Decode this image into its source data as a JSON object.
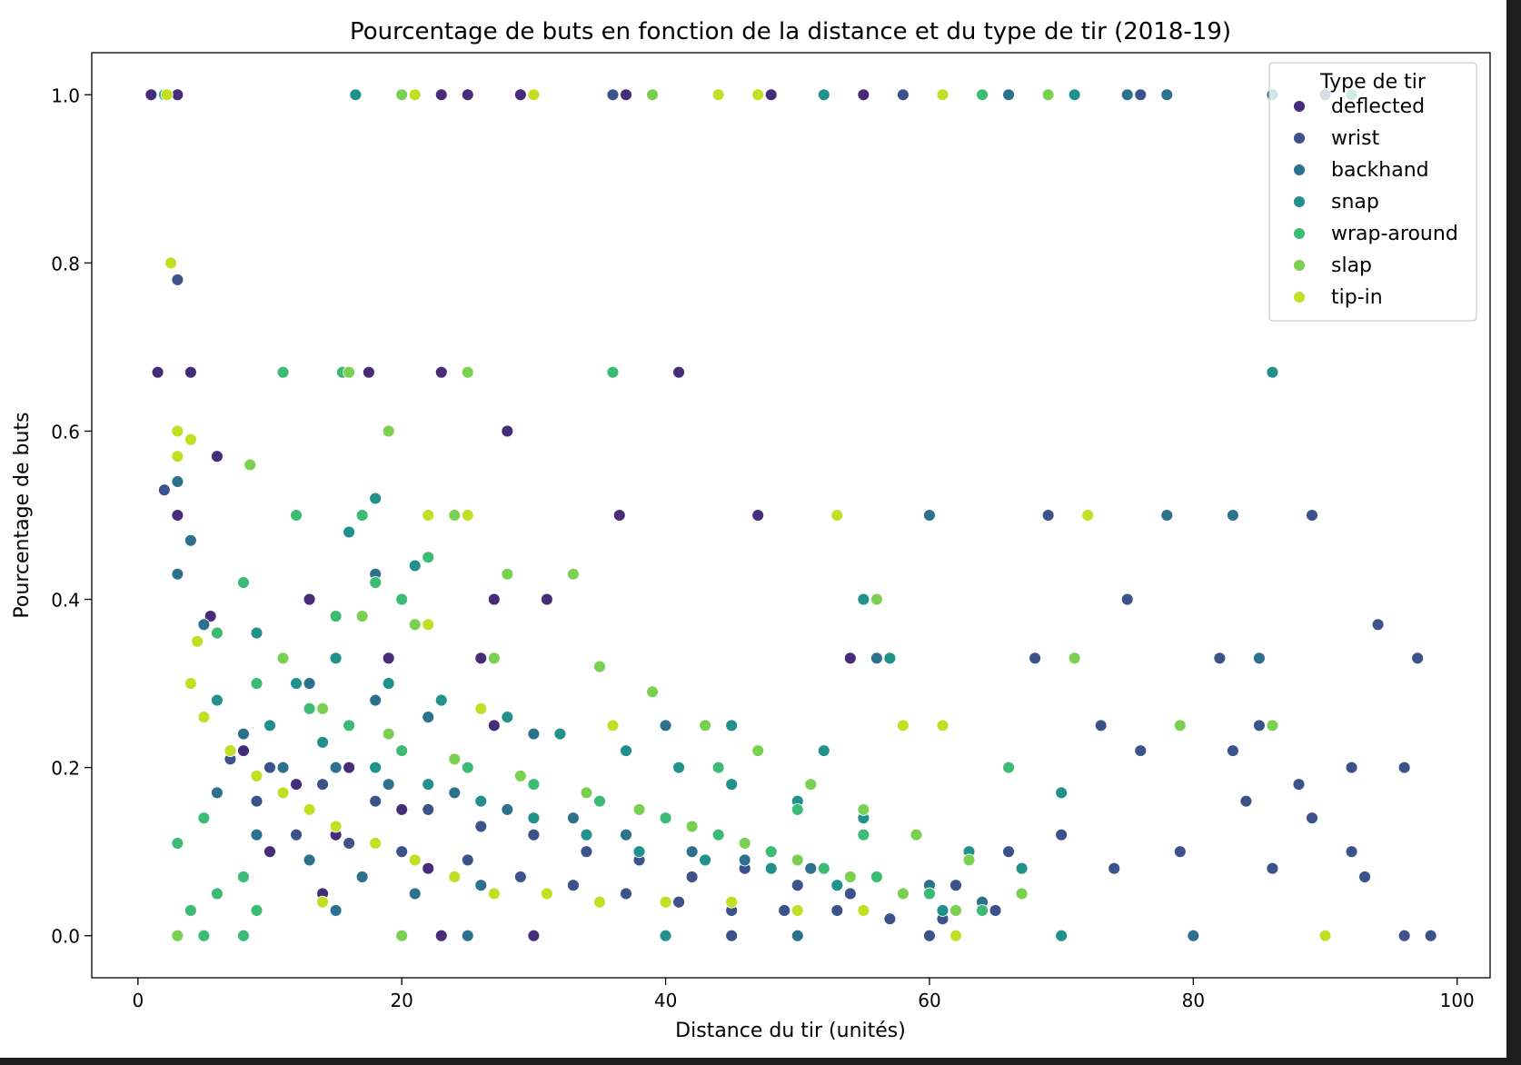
{
  "chart_data": {
    "type": "scatter",
    "title": "Pourcentage de buts en fonction de la distance et du type de tir (2018-19)",
    "xlabel": "Distance du tir (unités)",
    "ylabel": "Pourcentage de buts",
    "xlim": [
      -3.5,
      102.5
    ],
    "ylim": [
      -0.05,
      1.05
    ],
    "xticks": [
      0,
      20,
      40,
      60,
      80,
      100
    ],
    "xtick_labels": [
      "0",
      "20",
      "40",
      "60",
      "80",
      "100"
    ],
    "yticks": [
      0.0,
      0.2,
      0.4,
      0.6,
      0.8,
      1.0
    ],
    "ytick_labels": [
      "0.0",
      "0.2",
      "0.4",
      "0.6",
      "0.8",
      "1.0"
    ],
    "grid": false,
    "legend": {
      "title": "Type de tir",
      "placement": "top-right",
      "entries": [
        "deflected",
        "wrist",
        "backhand",
        "snap",
        "wrap-around",
        "slap",
        "tip-in"
      ]
    },
    "colors": {
      "deflected": "#472c7a",
      "wrist": "#3b528b",
      "backhand": "#2c728e",
      "snap": "#21918c",
      "wrap-around": "#3cbb75",
      "slap": "#7ad151",
      "tip-in": "#c2df23"
    },
    "series": [
      {
        "name": "deflected",
        "points": [
          [
            1,
            1.0
          ],
          [
            3,
            1.0
          ],
          [
            23,
            1.0
          ],
          [
            25,
            1.0
          ],
          [
            29,
            1.0
          ],
          [
            37,
            1.0
          ],
          [
            48,
            1.0
          ],
          [
            55,
            1.0
          ],
          [
            1.5,
            0.67
          ],
          [
            4,
            0.67
          ],
          [
            17.5,
            0.67
          ],
          [
            23,
            0.67
          ],
          [
            41,
            0.67
          ],
          [
            28,
            0.6
          ],
          [
            6,
            0.57
          ],
          [
            3,
            0.5
          ],
          [
            22,
            0.5
          ],
          [
            36.5,
            0.5
          ],
          [
            47,
            0.5
          ],
          [
            13,
            0.4
          ],
          [
            27,
            0.4
          ],
          [
            31,
            0.4
          ],
          [
            5.5,
            0.38
          ],
          [
            19,
            0.33
          ],
          [
            26,
            0.33
          ],
          [
            54,
            0.33
          ],
          [
            27,
            0.25
          ],
          [
            8,
            0.22
          ],
          [
            12,
            0.18
          ],
          [
            16,
            0.2
          ],
          [
            20,
            0.15
          ],
          [
            10,
            0.1
          ],
          [
            15,
            0.12
          ],
          [
            22,
            0.08
          ],
          [
            14,
            0.05
          ],
          [
            23,
            0.0
          ],
          [
            30,
            0.0
          ]
        ]
      },
      {
        "name": "wrist",
        "points": [
          [
            2,
            1.0
          ],
          [
            36,
            1.0
          ],
          [
            58,
            1.0
          ],
          [
            76,
            1.0
          ],
          [
            90,
            1.0
          ],
          [
            3,
            0.78
          ],
          [
            2,
            0.53
          ],
          [
            69,
            0.5
          ],
          [
            89,
            0.5
          ],
          [
            75,
            0.4
          ],
          [
            94,
            0.37
          ],
          [
            68,
            0.33
          ],
          [
            82,
            0.33
          ],
          [
            97,
            0.33
          ],
          [
            73,
            0.25
          ],
          [
            85,
            0.25
          ],
          [
            76,
            0.22
          ],
          [
            83,
            0.22
          ],
          [
            88,
            0.18
          ],
          [
            92,
            0.2
          ],
          [
            96,
            0.2
          ],
          [
            84,
            0.16
          ],
          [
            89,
            0.14
          ],
          [
            92,
            0.1
          ],
          [
            86,
            0.08
          ],
          [
            79,
            0.1
          ],
          [
            74,
            0.08
          ],
          [
            70,
            0.12
          ],
          [
            66,
            0.1
          ],
          [
            62,
            0.06
          ],
          [
            58,
            0.05
          ],
          [
            54,
            0.05
          ],
          [
            50,
            0.06
          ],
          [
            46,
            0.08
          ],
          [
            42,
            0.07
          ],
          [
            38,
            0.09
          ],
          [
            34,
            0.1
          ],
          [
            30,
            0.12
          ],
          [
            26,
            0.13
          ],
          [
            22,
            0.15
          ],
          [
            18,
            0.16
          ],
          [
            14,
            0.18
          ],
          [
            10,
            0.2
          ],
          [
            7,
            0.21
          ],
          [
            9,
            0.16
          ],
          [
            12,
            0.12
          ],
          [
            16,
            0.11
          ],
          [
            20,
            0.1
          ],
          [
            25,
            0.09
          ],
          [
            29,
            0.07
          ],
          [
            33,
            0.06
          ],
          [
            37,
            0.05
          ],
          [
            41,
            0.04
          ],
          [
            45,
            0.03
          ],
          [
            49,
            0.03
          ],
          [
            53,
            0.03
          ],
          [
            57,
            0.02
          ],
          [
            61,
            0.02
          ],
          [
            65,
            0.03
          ],
          [
            93,
            0.07
          ],
          [
            98,
            0.0
          ],
          [
            96,
            0.0
          ],
          [
            60,
            0.0
          ],
          [
            45,
            0.0
          ]
        ]
      },
      {
        "name": "backhand",
        "points": [
          [
            66,
            1.0
          ],
          [
            75,
            1.0
          ],
          [
            78,
            1.0
          ],
          [
            86,
            1.0
          ],
          [
            3,
            0.54
          ],
          [
            4,
            0.47
          ],
          [
            3,
            0.43
          ],
          [
            60,
            0.5
          ],
          [
            78,
            0.5
          ],
          [
            83,
            0.5
          ],
          [
            5,
            0.37
          ],
          [
            18,
            0.43
          ],
          [
            85,
            0.33
          ],
          [
            56,
            0.33
          ],
          [
            13,
            0.3
          ],
          [
            18,
            0.28
          ],
          [
            22,
            0.26
          ],
          [
            30,
            0.24
          ],
          [
            40,
            0.25
          ],
          [
            8,
            0.24
          ],
          [
            11,
            0.2
          ],
          [
            15,
            0.2
          ],
          [
            19,
            0.18
          ],
          [
            24,
            0.17
          ],
          [
            28,
            0.15
          ],
          [
            33,
            0.14
          ],
          [
            37,
            0.12
          ],
          [
            42,
            0.1
          ],
          [
            46,
            0.09
          ],
          [
            51,
            0.08
          ],
          [
            56,
            0.07
          ],
          [
            60,
            0.06
          ],
          [
            64,
            0.04
          ],
          [
            6,
            0.17
          ],
          [
            9,
            0.12
          ],
          [
            13,
            0.09
          ],
          [
            17,
            0.07
          ],
          [
            21,
            0.05
          ],
          [
            26,
            0.06
          ],
          [
            31,
            0.05
          ],
          [
            35,
            0.04
          ],
          [
            15,
            0.03
          ],
          [
            80,
            0.0
          ],
          [
            50,
            0.0
          ],
          [
            25,
            0.0
          ]
        ]
      },
      {
        "name": "snap",
        "points": [
          [
            16.5,
            1.0
          ],
          [
            52,
            1.0
          ],
          [
            71,
            1.0
          ],
          [
            92,
            1.0
          ],
          [
            86,
            0.67
          ],
          [
            18,
            0.52
          ],
          [
            16,
            0.48
          ],
          [
            21,
            0.44
          ],
          [
            55,
            0.4
          ],
          [
            9,
            0.36
          ],
          [
            12,
            0.3
          ],
          [
            15,
            0.33
          ],
          [
            19,
            0.3
          ],
          [
            23,
            0.28
          ],
          [
            28,
            0.26
          ],
          [
            32,
            0.24
          ],
          [
            37,
            0.22
          ],
          [
            41,
            0.2
          ],
          [
            45,
            0.18
          ],
          [
            50,
            0.16
          ],
          [
            55,
            0.14
          ],
          [
            59,
            0.12
          ],
          [
            63,
            0.1
          ],
          [
            67,
            0.08
          ],
          [
            70,
            0.17
          ],
          [
            57,
            0.33
          ],
          [
            45,
            0.25
          ],
          [
            52,
            0.22
          ],
          [
            6,
            0.28
          ],
          [
            10,
            0.25
          ],
          [
            14,
            0.23
          ],
          [
            18,
            0.2
          ],
          [
            22,
            0.18
          ],
          [
            26,
            0.16
          ],
          [
            30,
            0.14
          ],
          [
            34,
            0.12
          ],
          [
            38,
            0.1
          ],
          [
            43,
            0.09
          ],
          [
            48,
            0.08
          ],
          [
            53,
            0.06
          ],
          [
            58,
            0.05
          ],
          [
            61,
            0.03
          ],
          [
            70,
            0.0
          ],
          [
            40,
            0.0
          ]
        ]
      },
      {
        "name": "wrap-around",
        "points": [
          [
            2,
            1.0
          ],
          [
            21,
            1.0
          ],
          [
            64,
            1.0
          ],
          [
            15.5,
            0.67
          ],
          [
            36,
            0.67
          ],
          [
            11,
            0.67
          ],
          [
            12,
            0.5
          ],
          [
            17,
            0.5
          ],
          [
            18,
            0.42
          ],
          [
            22,
            0.45
          ],
          [
            20,
            0.4
          ],
          [
            15,
            0.38
          ],
          [
            8,
            0.42
          ],
          [
            6,
            0.36
          ],
          [
            9,
            0.3
          ],
          [
            13,
            0.27
          ],
          [
            16,
            0.25
          ],
          [
            20,
            0.22
          ],
          [
            25,
            0.2
          ],
          [
            30,
            0.18
          ],
          [
            35,
            0.16
          ],
          [
            40,
            0.14
          ],
          [
            44,
            0.12
          ],
          [
            48,
            0.1
          ],
          [
            52,
            0.08
          ],
          [
            56,
            0.07
          ],
          [
            60,
            0.05
          ],
          [
            64,
            0.03
          ],
          [
            66,
            0.2
          ],
          [
            44,
            0.2
          ],
          [
            50,
            0.15
          ],
          [
            55,
            0.12
          ],
          [
            4,
            0.03
          ],
          [
            6,
            0.05
          ],
          [
            8,
            0.07
          ],
          [
            3,
            0.11
          ],
          [
            5,
            0.14
          ],
          [
            9,
            0.03
          ],
          [
            5,
            0.0
          ],
          [
            8,
            0.0
          ]
        ]
      },
      {
        "name": "slap",
        "points": [
          [
            20,
            1.0
          ],
          [
            39,
            1.0
          ],
          [
            69,
            1.0
          ],
          [
            16,
            0.67
          ],
          [
            25,
            0.67
          ],
          [
            19,
            0.6
          ],
          [
            8.5,
            0.56
          ],
          [
            24,
            0.5
          ],
          [
            33,
            0.43
          ],
          [
            28,
            0.43
          ],
          [
            56,
            0.4
          ],
          [
            17,
            0.38
          ],
          [
            21,
            0.37
          ],
          [
            27,
            0.33
          ],
          [
            35,
            0.32
          ],
          [
            39,
            0.29
          ],
          [
            43,
            0.25
          ],
          [
            47,
            0.22
          ],
          [
            51,
            0.18
          ],
          [
            55,
            0.15
          ],
          [
            59,
            0.12
          ],
          [
            63,
            0.09
          ],
          [
            67,
            0.05
          ],
          [
            79,
            0.25
          ],
          [
            86,
            0.25
          ],
          [
            71,
            0.33
          ],
          [
            11,
            0.33
          ],
          [
            14,
            0.27
          ],
          [
            19,
            0.24
          ],
          [
            24,
            0.21
          ],
          [
            29,
            0.19
          ],
          [
            34,
            0.17
          ],
          [
            38,
            0.15
          ],
          [
            42,
            0.13
          ],
          [
            46,
            0.11
          ],
          [
            50,
            0.09
          ],
          [
            54,
            0.07
          ],
          [
            58,
            0.05
          ],
          [
            62,
            0.03
          ],
          [
            3,
            0.0
          ],
          [
            20,
            0.0
          ]
        ]
      },
      {
        "name": "tip-in",
        "points": [
          [
            2.2,
            1.0
          ],
          [
            21,
            1.0
          ],
          [
            30,
            1.0
          ],
          [
            44,
            1.0
          ],
          [
            47,
            1.0
          ],
          [
            61,
            1.0
          ],
          [
            2.5,
            0.8
          ],
          [
            3,
            0.6
          ],
          [
            4,
            0.59
          ],
          [
            3,
            0.57
          ],
          [
            22,
            0.5
          ],
          [
            25,
            0.5
          ],
          [
            53,
            0.5
          ],
          [
            72,
            0.5
          ],
          [
            58,
            0.25
          ],
          [
            61,
            0.25
          ],
          [
            4.5,
            0.35
          ],
          [
            4,
            0.3
          ],
          [
            5,
            0.26
          ],
          [
            7,
            0.22
          ],
          [
            9,
            0.19
          ],
          [
            11,
            0.17
          ],
          [
            13,
            0.15
          ],
          [
            15,
            0.13
          ],
          [
            18,
            0.11
          ],
          [
            21,
            0.09
          ],
          [
            24,
            0.07
          ],
          [
            27,
            0.05
          ],
          [
            31,
            0.05
          ],
          [
            35,
            0.04
          ],
          [
            40,
            0.04
          ],
          [
            45,
            0.04
          ],
          [
            50,
            0.03
          ],
          [
            55,
            0.03
          ],
          [
            14,
            0.04
          ],
          [
            22,
            0.37
          ],
          [
            26,
            0.27
          ],
          [
            36,
            0.25
          ],
          [
            62,
            0.0
          ],
          [
            90,
            0.0
          ]
        ]
      }
    ]
  }
}
